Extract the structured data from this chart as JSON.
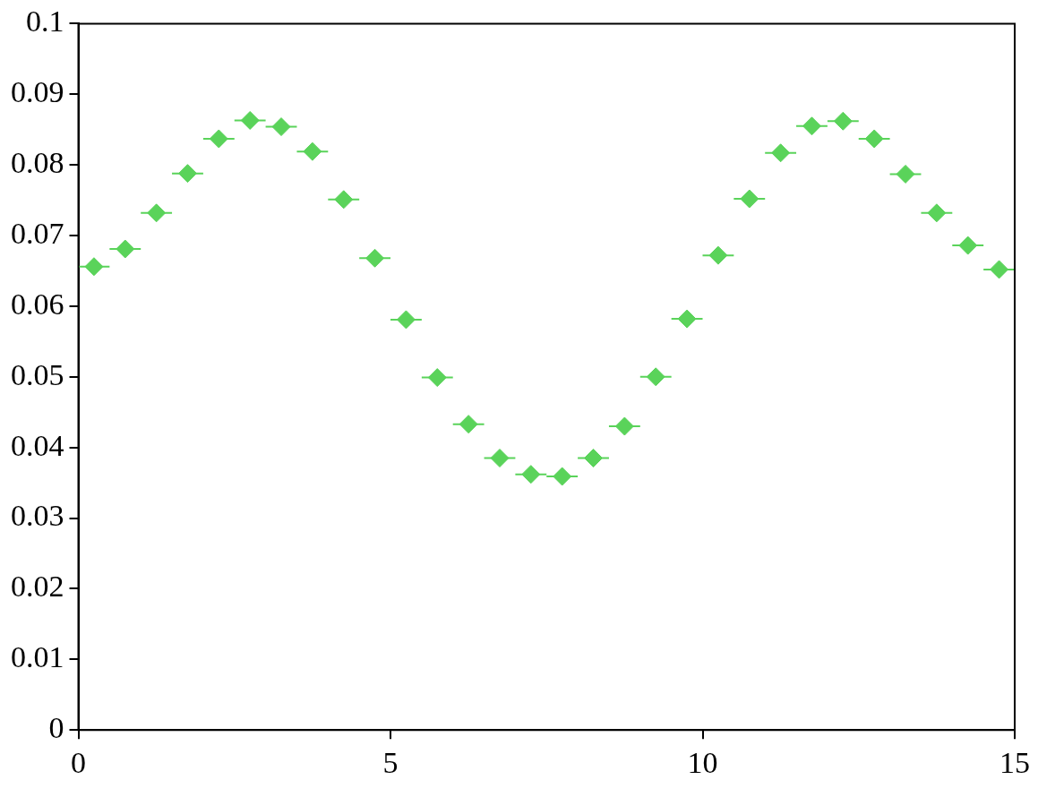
{
  "chart_data": {
    "type": "scatter",
    "marker": "diamond",
    "grid": false,
    "legend": false,
    "xlim": [
      0,
      15
    ],
    "xticks": [
      0,
      5,
      10,
      15
    ],
    "ylim": [
      0,
      0.1
    ],
    "yticks": [
      0,
      0.01,
      0.02,
      0.03,
      0.04,
      0.05,
      0.06,
      0.07,
      0.08,
      0.09,
      0.1
    ],
    "series": [
      {
        "color": "#5ad35a",
        "x": [
          0.25,
          0.75,
          1.25,
          1.75,
          2.25,
          2.75,
          3.25,
          3.75,
          4.25,
          4.75,
          5.25,
          5.75,
          6.25,
          6.75,
          7.25,
          7.75,
          8.25,
          8.75,
          9.25,
          9.75,
          10.25,
          10.75,
          11.25,
          11.75,
          12.25,
          12.75,
          13.25,
          13.75,
          14.25,
          14.75
        ],
        "values": [
          0.0656,
          0.0681,
          0.0732,
          0.0788,
          0.0837,
          0.0863,
          0.0854,
          0.0819,
          0.0751,
          0.0668,
          0.0581,
          0.0499,
          0.0433,
          0.0385,
          0.0362,
          0.0359,
          0.0385,
          0.043,
          0.05,
          0.0582,
          0.0672,
          0.0752,
          0.0817,
          0.0855,
          0.0862,
          0.0837,
          0.0787,
          0.0732,
          0.0686,
          0.0652
        ],
        "xerrors": [
          0.25,
          0.25,
          0.25,
          0.25,
          0.25,
          0.25,
          0.25,
          0.25,
          0.25,
          0.25,
          0.25,
          0.25,
          0.25,
          0.25,
          0.25,
          0.25,
          0.25,
          0.25,
          0.25,
          0.25,
          0.25,
          0.25,
          0.25,
          0.25,
          0.25,
          0.25,
          0.25,
          0.25,
          0.25,
          0.25
        ]
      }
    ]
  }
}
